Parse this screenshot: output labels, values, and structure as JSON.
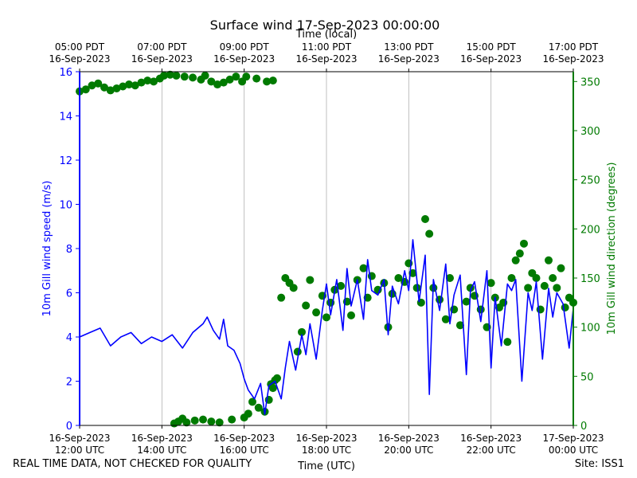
{
  "chart_data": {
    "type": "line",
    "title": "Surface wind 17-Sep-2023 00:00:00",
    "top_axis_label": "Time (local)",
    "xlabel": "Time (UTC)",
    "ylabel": "10m Gill wind speed (m/s)",
    "y2label": "10m Gill wind direction (degrees)",
    "xlim_hours": [
      0,
      12
    ],
    "ylim": [
      0,
      16
    ],
    "y2lim": [
      0,
      360
    ],
    "grid": "vertical lines at bottom ticks",
    "y_ticks": [
      "0",
      "2",
      "4",
      "6",
      "8",
      "10",
      "12",
      "14",
      "16"
    ],
    "y2_ticks": [
      "0",
      "50",
      "100",
      "150",
      "200",
      "250",
      "300",
      "350"
    ],
    "bottom_ticks": [
      {
        "hour": 0,
        "l1": "16-Sep-2023",
        "l2": "12:00 UTC"
      },
      {
        "hour": 2,
        "l1": "16-Sep-2023",
        "l2": "14:00 UTC"
      },
      {
        "hour": 4,
        "l1": "16-Sep-2023",
        "l2": "16:00 UTC"
      },
      {
        "hour": 6,
        "l1": "16-Sep-2023",
        "l2": "18:00 UTC"
      },
      {
        "hour": 8,
        "l1": "16-Sep-2023",
        "l2": "20:00 UTC"
      },
      {
        "hour": 10,
        "l1": "16-Sep-2023",
        "l2": "22:00 UTC"
      },
      {
        "hour": 12,
        "l1": "17-Sep-2023",
        "l2": "00:00 UTC"
      }
    ],
    "top_ticks": [
      {
        "hour": 0,
        "l1": "05:00 PDT",
        "l2": "16-Sep-2023"
      },
      {
        "hour": 2,
        "l1": "07:00 PDT",
        "l2": "16-Sep-2023"
      },
      {
        "hour": 4,
        "l1": "09:00 PDT",
        "l2": "16-Sep-2023"
      },
      {
        "hour": 6,
        "l1": "11:00 PDT",
        "l2": "16-Sep-2023"
      },
      {
        "hour": 8,
        "l1": "13:00 PDT",
        "l2": "16-Sep-2023"
      },
      {
        "hour": 10,
        "l1": "15:00 PDT",
        "l2": "16-Sep-2023"
      },
      {
        "hour": 12,
        "l1": "17:00 PDT",
        "l2": "16-Sep-2023"
      }
    ],
    "series": [
      {
        "name": "10m Gill wind speed (m/s)",
        "axis": "left",
        "style": "line",
        "color": "#0000ff",
        "x_hours": [
          0.0,
          0.25,
          0.5,
          0.75,
          1.0,
          1.25,
          1.5,
          1.75,
          2.0,
          2.25,
          2.5,
          2.75,
          3.0,
          3.1,
          3.25,
          3.4,
          3.5,
          3.6,
          3.75,
          3.9,
          4.0,
          4.1,
          4.25,
          4.4,
          4.5,
          4.6,
          4.75,
          4.9,
          5.0,
          5.1,
          5.25,
          5.4,
          5.5,
          5.6,
          5.75,
          5.9,
          6.0,
          6.1,
          6.25,
          6.4,
          6.5,
          6.6,
          6.75,
          6.9,
          7.0,
          7.1,
          7.25,
          7.4,
          7.5,
          7.6,
          7.75,
          7.9,
          8.0,
          8.1,
          8.25,
          8.4,
          8.5,
          8.6,
          8.75,
          8.9,
          9.0,
          9.1,
          9.25,
          9.4,
          9.5,
          9.6,
          9.75,
          9.9,
          10.0,
          10.1,
          10.25,
          10.4,
          10.5,
          10.6,
          10.75,
          10.9,
          11.0,
          11.1,
          11.25,
          11.4,
          11.5,
          11.6,
          11.75,
          11.9,
          12.0
        ],
        "values": [
          4.0,
          4.2,
          4.4,
          3.6,
          4.0,
          4.2,
          3.7,
          4.0,
          3.8,
          4.1,
          3.5,
          4.2,
          4.6,
          4.9,
          4.3,
          3.9,
          4.8,
          3.6,
          3.4,
          2.8,
          2.1,
          1.6,
          1.2,
          1.9,
          0.5,
          1.8,
          2.0,
          1.2,
          2.6,
          3.8,
          2.5,
          4.1,
          3.2,
          4.6,
          3.0,
          5.2,
          6.4,
          5.0,
          6.6,
          4.3,
          7.1,
          5.4,
          6.6,
          4.8,
          7.5,
          6.1,
          5.9,
          6.6,
          4.1,
          6.3,
          5.5,
          7.0,
          6.1,
          8.4,
          5.6,
          7.7,
          1.4,
          6.6,
          5.2,
          7.3,
          4.6,
          5.9,
          6.8,
          2.3,
          6.1,
          6.5,
          4.7,
          7.0,
          2.6,
          5.8,
          3.6,
          6.4,
          6.1,
          6.6,
          2.0,
          6.0,
          5.2,
          6.5,
          3.0,
          6.2,
          4.9,
          6.0,
          5.5,
          3.5,
          5.3
        ]
      },
      {
        "name": "10m Gill wind direction (degrees)",
        "axis": "right",
        "style": "dots",
        "color": "#007a00",
        "x_hours": [
          0.0,
          0.15,
          0.3,
          0.45,
          0.6,
          0.75,
          0.9,
          1.05,
          1.2,
          1.35,
          1.5,
          1.65,
          1.8,
          1.95,
          2.05,
          2.2,
          2.35,
          2.55,
          2.75,
          2.95,
          3.05,
          3.2,
          3.35,
          3.5,
          3.65,
          3.8,
          3.95,
          4.05,
          4.3,
          4.55,
          4.7,
          2.3,
          2.4,
          2.5,
          2.6,
          2.8,
          3.0,
          3.2,
          3.4,
          3.7,
          4.0,
          4.1,
          4.2,
          4.35,
          4.5,
          4.6,
          4.65,
          4.7,
          4.75,
          4.8,
          4.9,
          5.0,
          5.1,
          5.2,
          5.3,
          5.4,
          5.5,
          5.6,
          5.75,
          5.9,
          6.0,
          6.1,
          6.2,
          6.35,
          6.5,
          6.6,
          6.75,
          6.9,
          7.0,
          7.1,
          7.25,
          7.4,
          7.5,
          7.6,
          7.75,
          7.9,
          8.0,
          8.1,
          8.2,
          8.3,
          8.4,
          8.5,
          8.6,
          8.75,
          8.9,
          9.0,
          9.1,
          9.25,
          9.4,
          9.5,
          9.6,
          9.75,
          9.9,
          10.0,
          10.1,
          10.2,
          10.3,
          10.4,
          10.5,
          10.6,
          10.7,
          10.8,
          10.9,
          11.0,
          11.1,
          11.2,
          11.3,
          11.4,
          11.5,
          11.6,
          11.7,
          11.8,
          11.9,
          12.0
        ],
        "values": [
          340,
          342,
          346,
          348,
          344,
          341,
          343,
          345,
          347,
          346,
          349,
          351,
          350,
          353,
          356,
          357,
          356,
          355,
          354,
          352,
          356,
          350,
          347,
          349,
          352,
          355,
          350,
          355,
          353,
          350,
          351,
          2,
          4,
          7,
          3,
          5,
          6,
          4,
          3,
          6,
          8,
          12,
          24,
          18,
          14,
          26,
          42,
          38,
          46,
          48,
          130,
          150,
          145,
          140,
          75,
          95,
          122,
          148,
          115,
          132,
          110,
          125,
          138,
          142,
          126,
          112,
          148,
          160,
          130,
          152,
          138,
          145,
          100,
          134,
          150,
          146,
          165,
          155,
          140,
          125,
          210,
          195,
          140,
          128,
          108,
          150,
          118,
          102,
          126,
          140,
          132,
          118,
          100,
          145,
          130,
          120,
          125,
          85,
          150,
          168,
          175,
          185,
          140,
          155,
          150,
          118,
          142,
          168,
          150,
          140,
          160,
          120,
          130,
          125
        ]
      }
    ]
  },
  "footer": {
    "left": "REAL TIME DATA, NOT CHECKED FOR QUALITY",
    "right": "Site: ISS1"
  }
}
